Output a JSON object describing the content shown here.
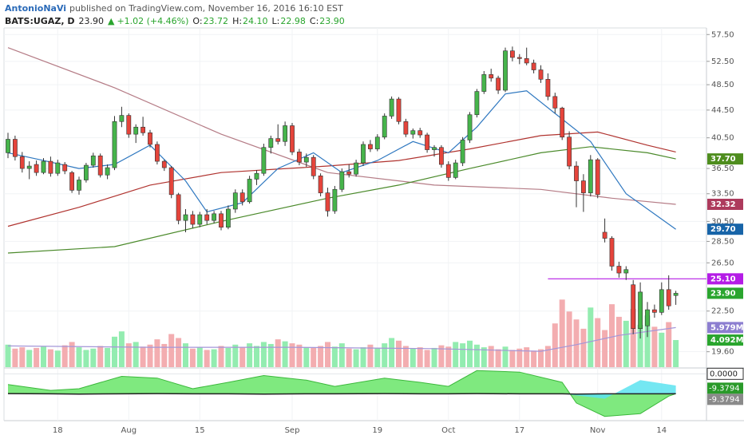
{
  "header": {
    "publisher": "AntonioNaVi",
    "published": "published on TradingView.com, November 16, 2016 16:10 EST"
  },
  "chart_data": {
    "type": "candlestick",
    "title": "BATS:UGAZ, D",
    "last": "23.90",
    "change": "+1.02 (+4.46%)",
    "ohlc_legend": [
      {
        "key": "O:",
        "value": "23.72"
      },
      {
        "key": "H:",
        "value": "24.10"
      },
      {
        "key": "L:",
        "value": "22.98"
      },
      {
        "key": "C:",
        "value": "23.90"
      }
    ],
    "categories": [
      null,
      null,
      null,
      null,
      null,
      null,
      null,
      "18",
      null,
      null,
      null,
      null,
      null,
      null,
      null,
      null,
      null,
      "Aug",
      null,
      null,
      null,
      null,
      null,
      null,
      null,
      null,
      null,
      "15",
      null,
      null,
      null,
      null,
      null,
      null,
      null,
      null,
      null,
      null,
      null,
      null,
      "Sep",
      null,
      null,
      null,
      null,
      null,
      null,
      null,
      null,
      null,
      null,
      null,
      "19",
      null,
      null,
      null,
      null,
      null,
      null,
      null,
      null,
      null,
      "Oct",
      null,
      null,
      null,
      null,
      null,
      null,
      null,
      null,
      null,
      "17",
      null,
      null,
      null,
      null,
      null,
      null,
      null,
      null,
      null,
      null,
      "Nov",
      null,
      null,
      null,
      null,
      null,
      null,
      null,
      null,
      "14",
      null,
      null
    ],
    "ohlc": [
      [
        38.5,
        41.2,
        37.8,
        40.3
      ],
      [
        40.3,
        40.8,
        37.5,
        38.0
      ],
      [
        38.0,
        38.6,
        36.0,
        36.5
      ],
      [
        36.5,
        37.4,
        35.2,
        36.8
      ],
      [
        37.0,
        37.5,
        35.6,
        36.0
      ],
      [
        36.0,
        37.8,
        35.8,
        37.4
      ],
      [
        37.4,
        38.0,
        35.5,
        35.9
      ],
      [
        35.9,
        37.6,
        35.6,
        37.2
      ],
      [
        37.0,
        37.3,
        35.8,
        36.2
      ],
      [
        36.0,
        36.2,
        33.6,
        33.9
      ],
      [
        33.9,
        35.5,
        33.4,
        35.1
      ],
      [
        35.1,
        37.2,
        34.8,
        36.9
      ],
      [
        36.9,
        38.5,
        36.6,
        38.1
      ],
      [
        38.1,
        38.4,
        35.4,
        35.7
      ],
      [
        35.7,
        37.0,
        35.2,
        36.6
      ],
      [
        36.6,
        43.6,
        36.3,
        42.8
      ],
      [
        42.8,
        45.0,
        42.0,
        43.7
      ],
      [
        43.7,
        44.0,
        40.5,
        41.0
      ],
      [
        41.0,
        42.4,
        39.8,
        42.0
      ],
      [
        42.0,
        43.5,
        40.8,
        41.2
      ],
      [
        41.2,
        41.6,
        39.2,
        39.6
      ],
      [
        39.6,
        40.0,
        37.0,
        37.4
      ],
      [
        37.4,
        37.6,
        36.2,
        36.6
      ],
      [
        36.6,
        36.8,
        33.0,
        33.4
      ],
      [
        33.4,
        33.6,
        30.2,
        30.6
      ],
      [
        30.6,
        31.8,
        29.4,
        31.2
      ],
      [
        31.2,
        31.6,
        29.8,
        30.2
      ],
      [
        30.2,
        31.5,
        29.9,
        31.2
      ],
      [
        31.2,
        31.8,
        30.2,
        30.6
      ],
      [
        30.6,
        31.6,
        30.3,
        31.3
      ],
      [
        31.3,
        31.6,
        29.6,
        29.9
      ],
      [
        29.9,
        32.2,
        29.7,
        31.8
      ],
      [
        31.8,
        34.0,
        31.4,
        33.6
      ],
      [
        33.6,
        34.0,
        32.2,
        32.6
      ],
      [
        32.6,
        35.6,
        32.4,
        35.2
      ],
      [
        35.2,
        36.3,
        34.5,
        35.9
      ],
      [
        35.9,
        39.7,
        35.6,
        39.2
      ],
      [
        39.2,
        40.8,
        38.4,
        40.4
      ],
      [
        40.4,
        42.4,
        39.6,
        40.0
      ],
      [
        40.0,
        42.8,
        39.4,
        42.2
      ],
      [
        42.2,
        42.6,
        38.2,
        38.6
      ],
      [
        38.6,
        39.0,
        36.9,
        37.3
      ],
      [
        37.3,
        38.4,
        36.7,
        37.9
      ],
      [
        37.9,
        38.2,
        35.2,
        35.6
      ],
      [
        35.6,
        35.9,
        33.2,
        33.6
      ],
      [
        33.6,
        34.2,
        31.0,
        31.6
      ],
      [
        31.6,
        34.4,
        31.3,
        34.0
      ],
      [
        34.0,
        36.5,
        33.7,
        36.1
      ],
      [
        36.1,
        37.0,
        35.4,
        35.8
      ],
      [
        35.8,
        37.6,
        35.5,
        37.2
      ],
      [
        37.2,
        40.0,
        36.8,
        39.6
      ],
      [
        39.6,
        40.2,
        38.6,
        39.0
      ],
      [
        39.0,
        41.0,
        38.7,
        40.6
      ],
      [
        40.6,
        44.0,
        40.3,
        43.6
      ],
      [
        43.6,
        46.6,
        43.2,
        46.2
      ],
      [
        46.2,
        46.5,
        42.4,
        42.8
      ],
      [
        42.8,
        43.2,
        40.6,
        41.0
      ],
      [
        41.0,
        41.8,
        40.4,
        41.5
      ],
      [
        41.5,
        41.9,
        40.5,
        40.9
      ],
      [
        40.9,
        41.2,
        38.5,
        38.9
      ],
      [
        38.9,
        39.5,
        38.0,
        39.2
      ],
      [
        39.2,
        39.5,
        36.6,
        37.0
      ],
      [
        37.0,
        37.4,
        35.0,
        35.4
      ],
      [
        35.4,
        37.6,
        35.2,
        37.2
      ],
      [
        37.2,
        40.6,
        36.8,
        40.2
      ],
      [
        40.2,
        44.2,
        39.8,
        43.8
      ],
      [
        43.8,
        47.8,
        43.4,
        47.4
      ],
      [
        47.4,
        50.8,
        47.0,
        50.2
      ],
      [
        50.2,
        51.2,
        49.0,
        49.6
      ],
      [
        49.6,
        50.0,
        47.0,
        47.6
      ],
      [
        47.6,
        55.0,
        47.3,
        54.4
      ],
      [
        54.4,
        55.2,
        52.5,
        53.2
      ],
      [
        53.2,
        53.8,
        52.0,
        53.0
      ],
      [
        53.0,
        55.0,
        51.8,
        52.2
      ],
      [
        52.2,
        52.8,
        50.4,
        51.0
      ],
      [
        51.0,
        51.8,
        48.8,
        49.4
      ],
      [
        49.4,
        50.4,
        46.0,
        46.6
      ],
      [
        46.6,
        47.2,
        44.0,
        44.8
      ],
      [
        44.8,
        45.0,
        40.2,
        40.6
      ],
      [
        40.6,
        41.4,
        36.4,
        36.8
      ],
      [
        36.8,
        37.4,
        32.0,
        35.0
      ],
      [
        35.0,
        35.8,
        31.5,
        33.6
      ],
      [
        33.6,
        38.2,
        33.2,
        37.6
      ],
      [
        37.6,
        37.8,
        33.0,
        33.4
      ],
      [
        29.4,
        30.8,
        28.4,
        28.8
      ],
      [
        28.8,
        29.0,
        25.8,
        26.2
      ],
      [
        26.2,
        26.6,
        25.2,
        25.6
      ],
      [
        25.6,
        26.2,
        25.0,
        25.9
      ],
      [
        24.6,
        25.0,
        20.8,
        21.2
      ],
      [
        21.2,
        24.8,
        20.5,
        24.0
      ],
      [
        21.4,
        23.2,
        20.6,
        22.6
      ],
      [
        22.6,
        23.0,
        22.0,
        22.4
      ],
      [
        22.4,
        24.8,
        22.2,
        24.2
      ],
      [
        24.2,
        25.4,
        22.6,
        22.9
      ],
      [
        23.72,
        24.1,
        22.98,
        23.9
      ]
    ],
    "up_color": "#46b44b",
    "down_color": "#e5443b",
    "log_scale": true,
    "ylim": [
      18.6,
      58.8
    ],
    "yticks": [
      {
        "value": 57.5,
        "label": "57.50"
      },
      {
        "value": 52.5,
        "label": "52.50"
      },
      {
        "value": 48.5,
        "label": "48.50"
      },
      {
        "value": 44.5,
        "label": "44.50"
      },
      {
        "value": 40.5,
        "label": "40.50"
      },
      {
        "value": 36.5,
        "label": "36.50"
      },
      {
        "value": 33.5,
        "label": "33.50"
      },
      {
        "value": 30.5,
        "label": "30.50"
      },
      {
        "value": 28.5,
        "label": "28.50"
      },
      {
        "value": 26.5,
        "label": "26.50"
      },
      {
        "value": 22.5,
        "label": "22.50"
      },
      {
        "value": 19.6,
        "label": "19.60"
      }
    ],
    "grid": true,
    "overlays": [
      {
        "color": "#b57c86",
        "x": [
          0,
          15,
          30,
          45,
          60,
          75,
          85,
          94
        ],
        "values": [
          55,
          48,
          41,
          36,
          34.5,
          34,
          33,
          32.32
        ],
        "label": "32.32",
        "label_color": "#ad3a5c"
      },
      {
        "color": "#4b8a2b",
        "x": [
          0,
          15,
          30,
          45,
          55,
          65,
          75,
          82,
          90,
          94
        ],
        "values": [
          27.4,
          28,
          30.5,
          33,
          34.5,
          36.5,
          38.5,
          39.3,
          38.5,
          37.7
        ],
        "label": "37.70",
        "label_color": "#4e8d1e"
      },
      {
        "color": "#b0332f",
        "x": [
          0,
          10,
          20,
          30,
          45,
          55,
          65,
          75,
          83,
          90,
          94
        ],
        "values": [
          30,
          32,
          34.5,
          36,
          36.8,
          37.5,
          39,
          40.8,
          41.3,
          39.5,
          38.6
        ]
      },
      {
        "color": "#2f78c0",
        "x": [
          0,
          5,
          10,
          15,
          20,
          25,
          28,
          33,
          38,
          43,
          47,
          52,
          57,
          62,
          66,
          70,
          73,
          77,
          82,
          87,
          94
        ],
        "values": [
          38.5,
          37.5,
          36.5,
          37,
          39.5,
          35,
          31.5,
          32.5,
          36.5,
          38.5,
          36,
          37.5,
          40,
          38.5,
          42,
          47,
          47.5,
          44,
          40,
          33.5,
          29.7
        ],
        "label": "29.70",
        "label_color": "#1764a8"
      }
    ],
    "level": {
      "value": 25.1,
      "label": "25.10",
      "color": "#b41ce6",
      "from": 76
    },
    "last_price": {
      "value": 23.9,
      "label": "23.90",
      "color": "#2aa52e"
    },
    "volume": {
      "ylim": [
        0,
        51.2
      ],
      "up_color": "#93ecb0",
      "down_color": "#f3adb0",
      "label": "4.092M",
      "label_color": "#2aa52e",
      "values": [
        3.4,
        2.8,
        3.0,
        2.6,
        2.9,
        3.1,
        2.7,
        2.5,
        3.3,
        3.8,
        3.0,
        2.6,
        2.8,
        3.2,
        2.9,
        4.6,
        5.4,
        3.6,
        3.8,
        3.1,
        3.4,
        4.2,
        3.5,
        5.0,
        4.4,
        3.6,
        2.8,
        3.0,
        2.6,
        2.7,
        3.2,
        2.9,
        3.4,
        3.0,
        3.6,
        3.2,
        3.8,
        3.5,
        4.2,
        3.9,
        3.6,
        3.4,
        3.0,
        2.9,
        3.2,
        3.8,
        3.1,
        3.6,
        2.8,
        2.7,
        3.0,
        3.4,
        2.9,
        3.6,
        4.4,
        4.0,
        3.2,
        2.8,
        3.0,
        2.6,
        2.9,
        3.3,
        3.1,
        3.8,
        3.6,
        4.0,
        3.4,
        3.0,
        3.2,
        2.7,
        3.1,
        2.6,
        2.8,
        3.0,
        2.5,
        2.7,
        3.2,
        6.6,
        10.2,
        8.4,
        7.2,
        5.8,
        9.0,
        7.4,
        5.6,
        9.5,
        7.6,
        7.0,
        8.8,
        6.4,
        7.8,
        6.1,
        5.2,
        6.8,
        4.092
      ]
    },
    "volume_ma": {
      "color": "#a496d8",
      "x": [
        0,
        20,
        40,
        60,
        75,
        80,
        86,
        94
      ],
      "values": [
        3.2,
        3.0,
        3.0,
        2.8,
        2.4,
        3.4,
        4.8,
        5.979
      ],
      "label": "5.979M",
      "label_color": "#8c7ed0"
    },
    "oscillator": {
      "ylim": [
        -22,
        2
      ],
      "yticks": [
        {
          "value": 0,
          "label": "0.0000"
        }
      ],
      "color": "#7fe97f",
      "line_color": "#3cb83c",
      "x": [
        0,
        6,
        10,
        16,
        21,
        26,
        31,
        36,
        42,
        46,
        53,
        58,
        62,
        66,
        72,
        78,
        80,
        84,
        89,
        93,
        94
      ],
      "values": [
        -5,
        -7.8,
        -7,
        -1.2,
        -2,
        -7,
        -4,
        -0.8,
        -3,
        -5.9,
        -2,
        -4,
        -5.9,
        1.5,
        0.8,
        -4,
        -13.7,
        -20,
        -18.7,
        -10.5,
        -9.3794
      ],
      "label": "-9.3794",
      "label_color": "#2a9a2a",
      "signal": [
        -9.3,
        -9.4,
        -9.5,
        -9.4,
        -9.3,
        -9.4,
        -9.4,
        -9.5,
        -9.4,
        -9.4,
        -9.3,
        -9.4,
        -9.4,
        -9.3,
        -9.4,
        -9.4,
        -9.5,
        -9.4,
        -9.4,
        -9.4,
        -9.3794
      ],
      "signal_color": "#222222",
      "signal_label": "-9.3794",
      "signal_label_color": "#8a8a8a",
      "cyan": {
        "color": "#5ce3f0",
        "x": [
          78,
          84,
          89,
          94
        ],
        "values": [
          -9.4,
          -11.7,
          -3,
          -5.5
        ]
      }
    }
  }
}
